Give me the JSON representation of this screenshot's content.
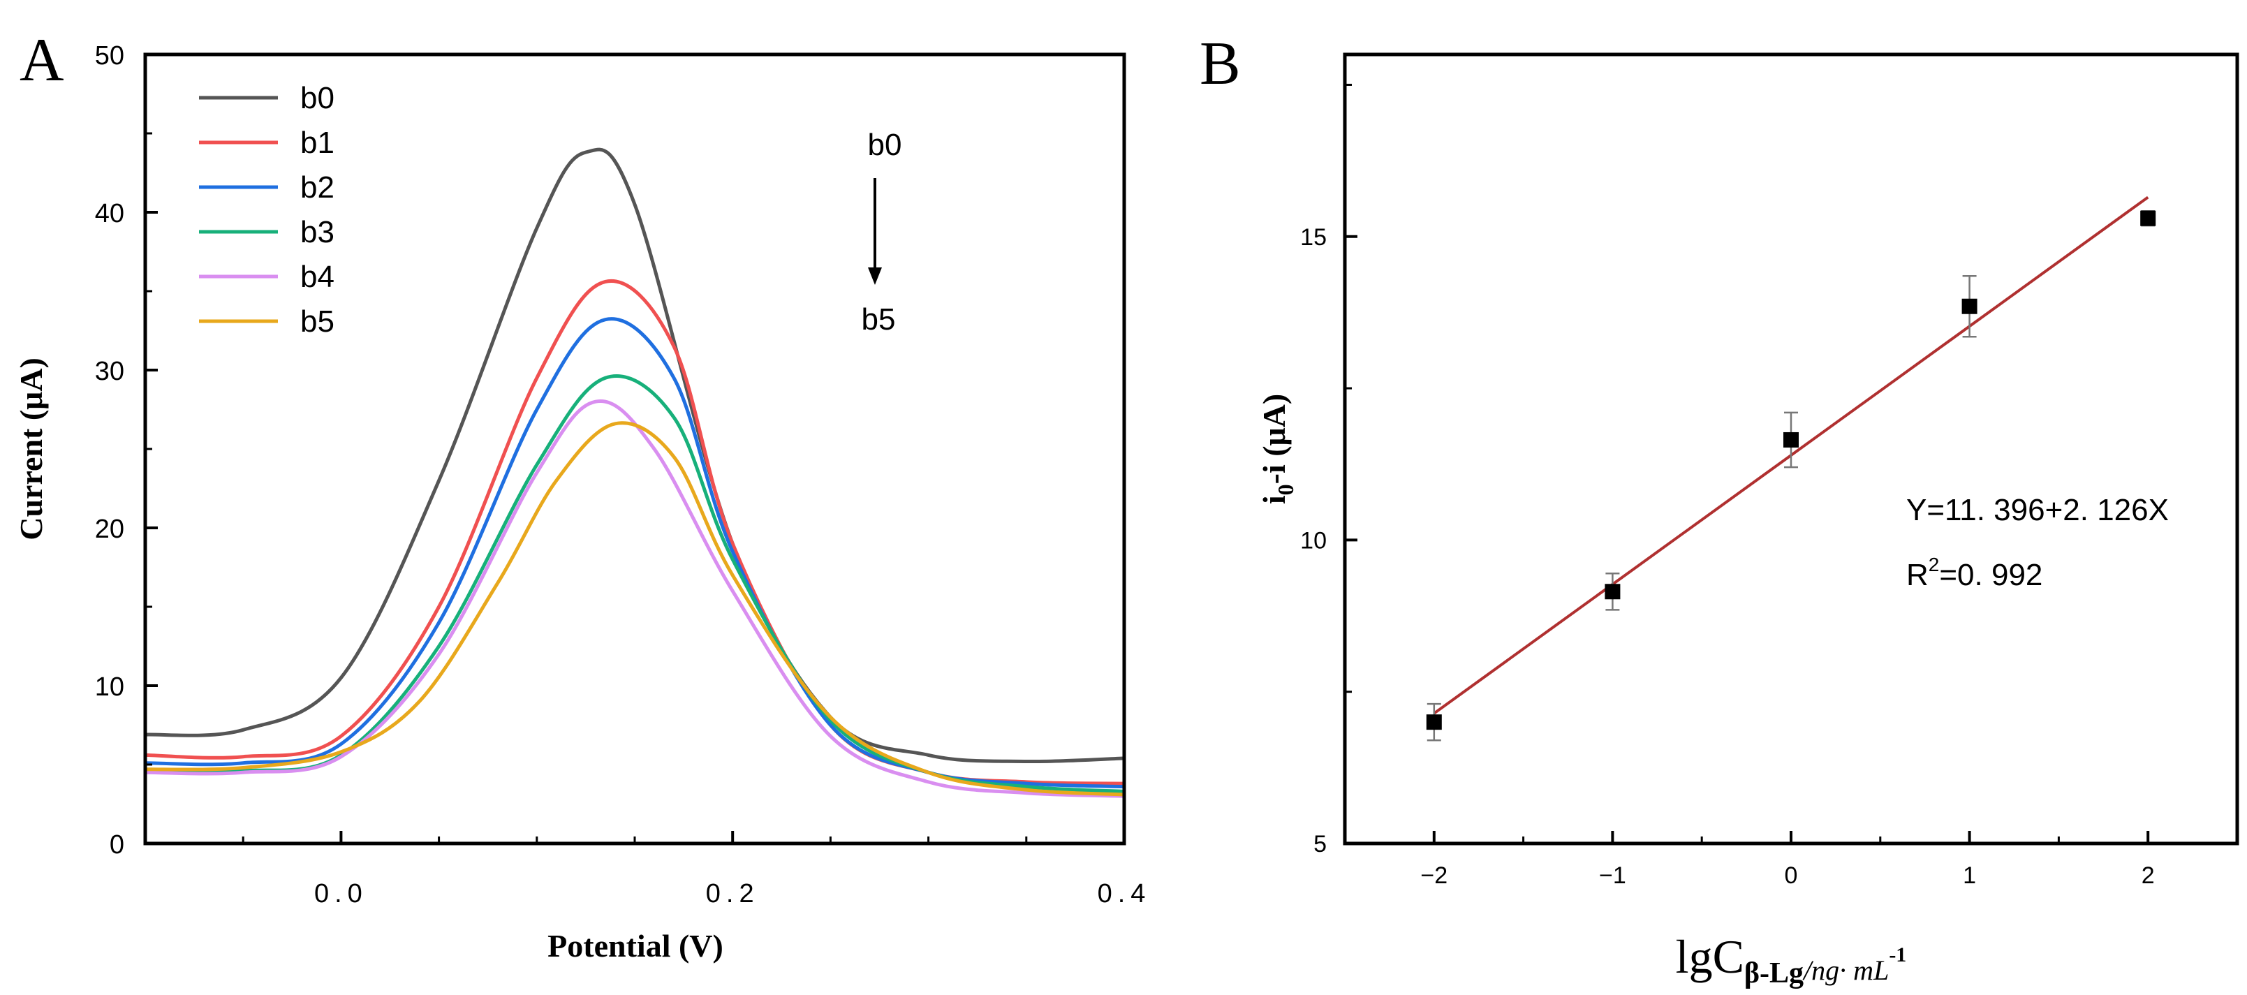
{
  "chart_data": [
    {
      "panel_label": "A",
      "type": "line",
      "xlabel": "Potential (V)",
      "ylabel": "Current (μA)",
      "xlim": [
        -0.1,
        0.4
      ],
      "ylim": [
        0,
        50
      ],
      "x_ticks": [
        0.0,
        0.2,
        0.4
      ],
      "x_tick_labels": [
        "0.0",
        "0.2",
        "0.4"
      ],
      "y_ticks": [
        0,
        10,
        20,
        30,
        40,
        50
      ],
      "y_tick_labels": [
        "0",
        "10",
        "20",
        "30",
        "40",
        "50"
      ],
      "grid": false,
      "legend_position": "top-left",
      "annotation": {
        "top": "b0",
        "bottom": "b5"
      },
      "series": [
        {
          "name": "b0",
          "color": "#555555",
          "x": [
            -0.1,
            -0.05,
            0.0,
            0.05,
            0.1,
            0.125,
            0.15,
            0.2,
            0.25,
            0.3,
            0.35,
            0.4
          ],
          "y": [
            6.9,
            7.2,
            10.5,
            23.0,
            39.0,
            43.8,
            40.5,
            19.0,
            8.0,
            5.6,
            5.2,
            5.4
          ]
        },
        {
          "name": "b1",
          "color": "#f05050",
          "x": [
            -0.1,
            -0.05,
            0.0,
            0.05,
            0.1,
            0.135,
            0.17,
            0.2,
            0.25,
            0.3,
            0.35,
            0.4
          ],
          "y": [
            5.6,
            5.5,
            6.8,
            15.0,
            29.5,
            35.6,
            31.5,
            19.0,
            7.5,
            4.5,
            3.9,
            3.8
          ]
        },
        {
          "name": "b2",
          "color": "#1f6fe0",
          "x": [
            -0.1,
            -0.05,
            0.0,
            0.05,
            0.1,
            0.135,
            0.17,
            0.2,
            0.25,
            0.3,
            0.35,
            0.4
          ],
          "y": [
            5.1,
            5.1,
            6.3,
            14.0,
            27.5,
            33.2,
            29.5,
            18.5,
            7.5,
            4.5,
            3.8,
            3.6
          ]
        },
        {
          "name": "b3",
          "color": "#17b07a",
          "x": [
            -0.1,
            -0.05,
            0.0,
            0.05,
            0.1,
            0.135,
            0.17,
            0.2,
            0.25,
            0.3,
            0.35,
            0.4
          ],
          "y": [
            4.6,
            4.6,
            5.6,
            12.5,
            24.0,
            29.5,
            27.0,
            18.0,
            7.8,
            4.5,
            3.6,
            3.3
          ]
        },
        {
          "name": "b4",
          "color": "#d98ef0",
          "x": [
            -0.1,
            -0.05,
            0.0,
            0.05,
            0.1,
            0.13,
            0.16,
            0.2,
            0.25,
            0.3,
            0.35,
            0.4
          ],
          "y": [
            4.5,
            4.5,
            5.5,
            12.0,
            23.5,
            28.0,
            25.0,
            16.0,
            6.8,
            3.9,
            3.2,
            3.0
          ]
        },
        {
          "name": "b5",
          "color": "#e8a81c",
          "x": [
            -0.1,
            -0.05,
            0.0,
            0.04,
            0.08,
            0.11,
            0.14,
            0.17,
            0.2,
            0.25,
            0.3,
            0.35,
            0.4
          ],
          "y": [
            4.7,
            4.8,
            5.8,
            9.0,
            16.5,
            23.0,
            26.6,
            24.5,
            17.0,
            8.0,
            4.5,
            3.4,
            3.1
          ]
        }
      ]
    },
    {
      "panel_label": "B",
      "type": "scatter",
      "xlabel_main": "lgC",
      "xlabel_subscript": "β-Lg",
      "xlabel_unit": "/ng· mL",
      "xlabel_superscript": "-1",
      "ylabel_main": "i",
      "ylabel_subscript": "0",
      "ylabel_rest": "-i (μA)",
      "xlim": [
        -2.5,
        2.5
      ],
      "ylim": [
        5,
        18
      ],
      "x_ticks": [
        -2,
        -1,
        0,
        1,
        2
      ],
      "x_tick_labels": [
        "−2",
        "−1",
        "0",
        "1",
        "2"
      ],
      "y_ticks": [
        5,
        10,
        15
      ],
      "y_tick_labels": [
        "5",
        "10",
        "15"
      ],
      "grid": false,
      "points": {
        "x": [
          -2,
          -1,
          0,
          1,
          2
        ],
        "y": [
          7.0,
          9.15,
          11.65,
          13.85,
          15.3
        ],
        "error": [
          0.3,
          0.3,
          0.45,
          0.5,
          0.12
        ]
      },
      "fit_line": {
        "intercept": 11.396,
        "slope": 2.126,
        "x_range": [
          -2,
          2
        ],
        "color": "#b03030"
      },
      "equation": "Y=11. 396+2. 126X",
      "r2_prefix": "R",
      "r2_superscript": "2",
      "r2_suffix": "=0. 992"
    }
  ]
}
